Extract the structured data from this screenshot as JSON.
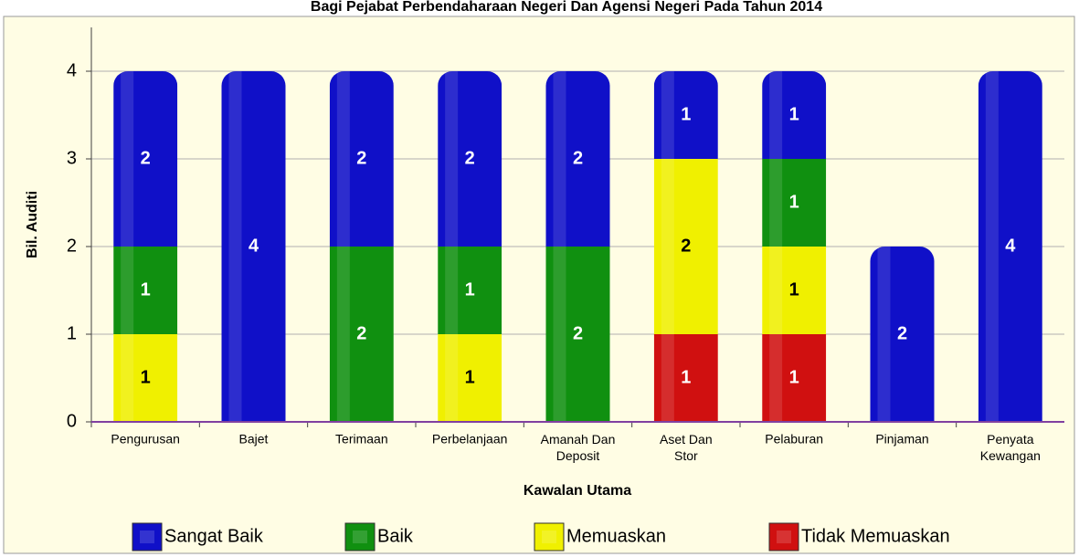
{
  "chart_data": {
    "type": "stacked_bar",
    "title": "Bagi Pejabat Perbendaharaan Negeri Dan Agensi Negeri Pada Tahun 2014",
    "x_label": "Kawalan Utama",
    "y_label": "Bil. Auditi",
    "categories": [
      "Pengurusan",
      "Bajet",
      "Terimaan",
      "Perbelanjaan",
      "Amanah Dan Deposit",
      "Aset Dan Stor",
      "Pelaburan",
      "Pinjaman",
      "Penyata Kewangan"
    ],
    "series": [
      {
        "name": "Sangat Baik",
        "color": "#1010c8",
        "values": [
          2,
          4,
          2,
          2,
          2,
          1,
          1,
          2,
          4
        ]
      },
      {
        "name": "Baik",
        "color": "#109010",
        "values": [
          1,
          0,
          2,
          1,
          2,
          0,
          1,
          0,
          0
        ]
      },
      {
        "name": "Memuaskan",
        "color": "#f0f000",
        "values": [
          1,
          0,
          0,
          1,
          0,
          2,
          1,
          0,
          0
        ]
      },
      {
        "name": "Tidak Memuaskan",
        "color": "#d01010",
        "values": [
          0,
          0,
          0,
          0,
          0,
          1,
          1,
          0,
          0
        ]
      }
    ],
    "ylim": [
      0,
      4.5
    ],
    "yticks": [
      0,
      1,
      2,
      3,
      4
    ],
    "grid": true,
    "legend": "bottom"
  }
}
